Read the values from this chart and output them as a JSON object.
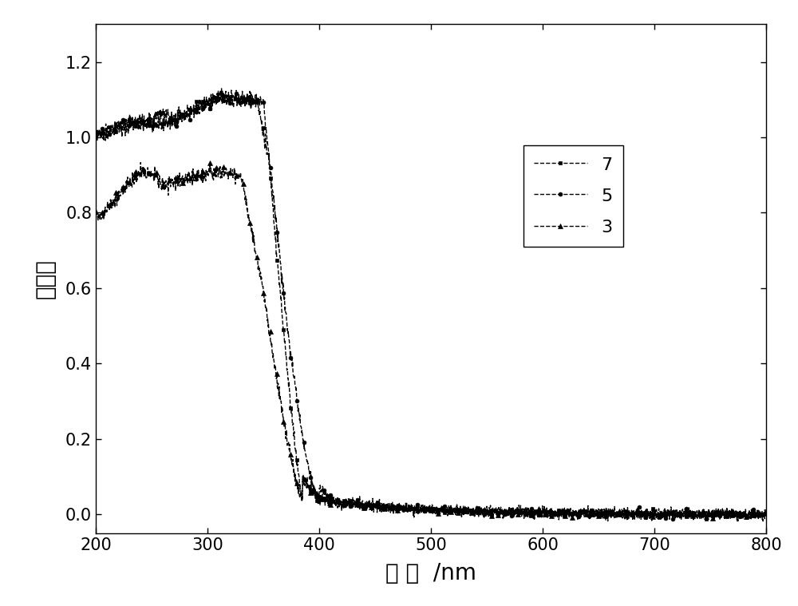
{
  "title": "",
  "xlabel": "波 长  /nm",
  "ylabel": "吸光度",
  "xlim": [
    200,
    800
  ],
  "ylim": [
    -0.05,
    1.3
  ],
  "yticks": [
    0.0,
    0.2,
    0.4,
    0.6,
    0.8,
    1.0,
    1.2
  ],
  "xticks": [
    200,
    300,
    400,
    500,
    600,
    700,
    800
  ],
  "background_color": "#ffffff",
  "line_color": "#000000",
  "series": [
    {
      "label": "7",
      "marker": "s",
      "linestyle": "--"
    },
    {
      "label": "5",
      "marker": "o",
      "linestyle": "--"
    },
    {
      "label": "3",
      "marker": "^",
      "linestyle": "--"
    }
  ]
}
